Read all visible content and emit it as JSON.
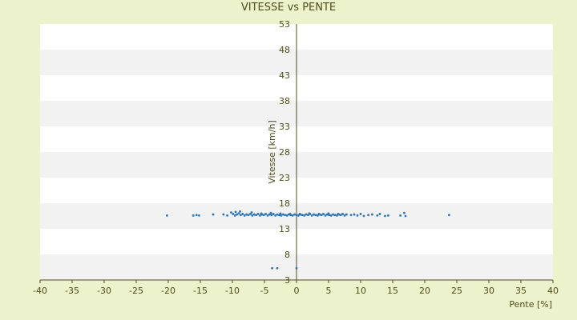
{
  "chart_data": {
    "type": "scatter",
    "title": "VITESSE vs PENTE",
    "xlabel": "Pente [%]",
    "ylabel": "Vitesse [km/h]",
    "xlim": [
      -40,
      40
    ],
    "ylim": [
      3,
      53
    ],
    "xticks": [
      "-40",
      "-35",
      "-30",
      "-25",
      "-20",
      "-15",
      "-10",
      "-5",
      "0",
      "5",
      "10",
      "15",
      "20",
      "25",
      "30",
      "35",
      "40"
    ],
    "yticks": [
      "53",
      "48",
      "43",
      "38",
      "33",
      "28",
      "23",
      "18",
      "13",
      "8",
      "3"
    ],
    "grid": "horizontal alternating bands",
    "legend": "none",
    "colors": {
      "points": "#2e75b6",
      "band_light": "#ffffff",
      "band_dark": "#f2f2f2",
      "axis": "#4d4d1a"
    },
    "series": [
      {
        "x": [
          -20.2,
          -16.1,
          -15.6,
          -15.2,
          -13.0,
          -11.4,
          -10.8,
          -10.2,
          -9.9,
          -9.6,
          -9.3,
          -9.0,
          -8.7,
          -8.4,
          -8.1,
          -7.8,
          -7.5,
          -7.2,
          -6.9,
          -6.6,
          -6.3,
          -6.0,
          -5.7,
          -5.4,
          -5.1,
          -4.8,
          -4.5,
          -4.2,
          -3.9,
          -3.6,
          -3.3,
          -3.0,
          -2.7,
          -2.4,
          -2.1,
          -1.8,
          -1.5,
          -1.2,
          -0.9,
          -0.6,
          -0.3,
          0.0,
          0.3,
          0.6,
          0.9,
          1.2,
          1.5,
          1.8,
          2.1,
          2.4,
          2.7,
          3.0,
          3.3,
          3.6,
          3.9,
          4.2,
          4.5,
          4.8,
          5.1,
          5.4,
          5.7,
          6.0,
          6.3,
          6.6,
          6.9,
          7.2,
          7.5,
          7.8,
          8.5,
          9.0,
          9.5,
          10.0,
          10.5,
          11.2,
          11.8,
          12.6,
          13.0,
          13.8,
          14.3,
          16.2,
          16.8,
          17.0,
          23.8,
          -9.5,
          -8.8,
          -7.0,
          -5.5,
          -4.0,
          -2.5,
          -1.0,
          0.5,
          2.0,
          3.5,
          5.0,
          6.5,
          -3.8,
          -3.0,
          0.0
        ],
        "y": [
          15.6,
          15.6,
          15.7,
          15.6,
          15.8,
          15.8,
          15.6,
          16.2,
          15.9,
          15.6,
          15.8,
          16.0,
          15.7,
          15.9,
          15.6,
          15.8,
          15.7,
          15.9,
          15.6,
          15.8,
          15.7,
          15.9,
          15.6,
          15.8,
          15.7,
          15.9,
          15.6,
          15.8,
          15.7,
          15.9,
          15.6,
          15.8,
          15.7,
          15.6,
          15.8,
          15.7,
          15.6,
          15.8,
          15.7,
          15.6,
          15.8,
          15.7,
          15.6,
          15.8,
          15.7,
          15.6,
          15.8,
          15.7,
          15.9,
          15.6,
          15.8,
          15.7,
          15.6,
          15.8,
          15.7,
          15.9,
          15.6,
          15.8,
          15.7,
          15.6,
          15.8,
          15.7,
          15.6,
          15.8,
          15.7,
          15.9,
          15.6,
          15.8,
          15.7,
          15.8,
          15.6,
          15.9,
          15.5,
          15.7,
          15.8,
          15.6,
          15.9,
          15.5,
          15.6,
          15.6,
          16.1,
          15.5,
          15.7,
          16.3,
          16.4,
          16.2,
          16.0,
          16.1,
          16.0,
          15.9,
          15.9,
          16.0,
          15.9,
          16.0,
          15.9,
          5.3,
          5.3,
          5.3
        ]
      }
    ]
  }
}
